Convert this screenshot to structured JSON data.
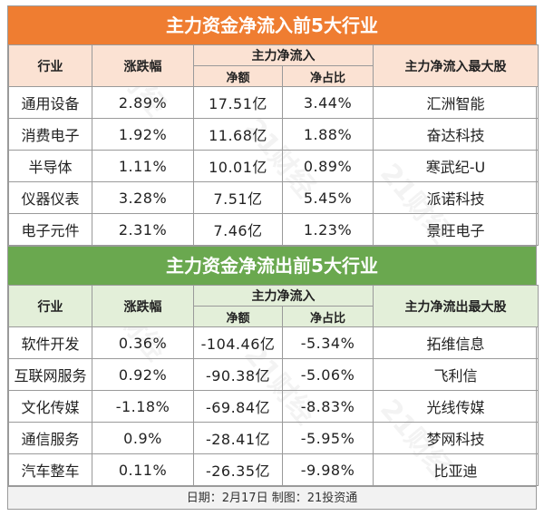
{
  "inflow": {
    "title": "主力资金净流入前5大行业",
    "headers": {
      "industry": "行业",
      "change": "涨跌幅",
      "group": "主力净流入",
      "net": "净额",
      "ratio": "净占比",
      "stock": "主力净流入最大股"
    },
    "rows": [
      {
        "industry": "通用设备",
        "change": "2.89%",
        "net": "17.51亿",
        "ratio": "3.44%",
        "stock": "汇洲智能"
      },
      {
        "industry": "消费电子",
        "change": "1.92%",
        "net": "11.68亿",
        "ratio": "1.88%",
        "stock": "奋达科技"
      },
      {
        "industry": "半导体",
        "change": "1.11%",
        "net": "10.01亿",
        "ratio": "0.89%",
        "stock": "寒武纪-U"
      },
      {
        "industry": "仪器仪表",
        "change": "3.28%",
        "net": "7.51亿",
        "ratio": "5.45%",
        "stock": "派诺科技"
      },
      {
        "industry": "电子元件",
        "change": "2.31%",
        "net": "7.46亿",
        "ratio": "1.23%",
        "stock": "景旺电子"
      }
    ]
  },
  "outflow": {
    "title": "主力资金净流出前5大行业",
    "headers": {
      "industry": "行业",
      "change": "涨跌幅",
      "group": "主力净流入",
      "net": "净额",
      "ratio": "净占比",
      "stock": "主力净流出最大股"
    },
    "rows": [
      {
        "industry": "软件开发",
        "change": "0.36%",
        "net": "-104.46亿",
        "ratio": "-5.34%",
        "stock": "拓维信息"
      },
      {
        "industry": "互联网服务",
        "change": "0.92%",
        "net": "-90.38亿",
        "ratio": "-5.06%",
        "stock": "飞利信"
      },
      {
        "industry": "文化传媒",
        "change": "-1.18%",
        "net": "-69.84亿",
        "ratio": "-8.83%",
        "stock": "光线传媒"
      },
      {
        "industry": "通信服务",
        "change": "0.9%",
        "net": "-28.41亿",
        "ratio": "-5.95%",
        "stock": "梦网科技"
      },
      {
        "industry": "汽车整车",
        "change": "0.11%",
        "net": "-26.35亿",
        "ratio": "-9.98%",
        "stock": "比亚迪"
      }
    ]
  },
  "footer": "日期：2月17日 制图：21投资通",
  "watermark": "21财经",
  "colors": {
    "inflow_title": "#ef7d31",
    "outflow_title": "#6aa84f"
  }
}
